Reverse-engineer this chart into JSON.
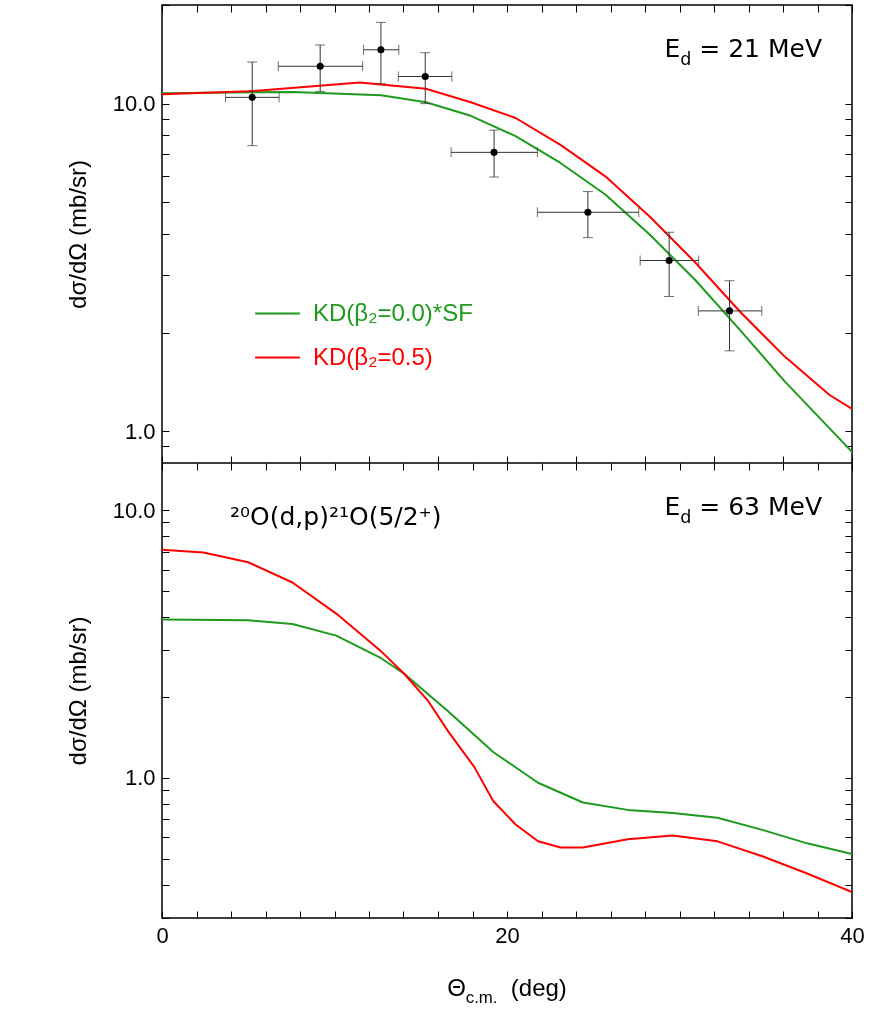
{
  "chart_data": [
    {
      "type": "line",
      "ylabel": "dσ/dΩ  (mb/sr)",
      "log": true,
      "legend": "left",
      "tick_labels": "y",
      "xlim": [
        0,
        40
      ],
      "xticks": [
        0,
        {
          "value": 2,
          "label": null
        },
        {
          "value": 4,
          "label": null
        },
        {
          "value": 6,
          "label": null
        },
        {
          "value": 8,
          "label": null
        },
        {
          "value": 10,
          "label": null
        },
        {
          "value": 12,
          "label": null
        },
        {
          "value": 14,
          "label": null
        },
        {
          "value": 16,
          "label": null
        },
        {
          "value": 18,
          "label": null
        },
        20,
        {
          "value": 22,
          "label": null
        },
        {
          "value": 24,
          "label": null
        },
        {
          "value": 26,
          "label": null
        },
        {
          "value": 28,
          "label": null
        },
        {
          "value": 30,
          "label": null
        },
        {
          "value": 32,
          "label": null
        },
        {
          "value": 34,
          "label": null
        },
        {
          "value": 36,
          "label": null
        },
        {
          "value": 38,
          "label": null
        },
        40
      ],
      "ylim": [
        0.8,
        20
      ],
      "yticks": [
        {
          "value": 0.8,
          "label": null
        },
        {
          "value": 0.9,
          "label": null
        },
        {
          "value": 1,
          "label": "1.0"
        },
        {
          "value": 2,
          "label": null
        },
        {
          "value": 3,
          "label": null
        },
        {
          "value": 4,
          "label": null
        },
        {
          "value": 5,
          "label": null
        },
        {
          "value": 6,
          "label": null
        },
        {
          "value": 7,
          "label": null
        },
        {
          "value": 8,
          "label": null
        },
        {
          "value": 9,
          "label": null
        },
        {
          "value": 10,
          "label": "10.0"
        },
        {
          "value": 20,
          "label": null
        }
      ],
      "annotations": [
        "E$_{d}$ = 21 MeV"
      ],
      "series": [
        {
          "type": "scatter",
          "color": "#000000",
          "x": [
            5.23,
            9.17,
            12.69,
            15.26,
            19.25,
            24.69,
            29.4,
            32.9
          ],
          "values": [
            10.45,
            13.0,
            14.6,
            12.1,
            7.1,
            4.66,
            3.32,
            2.33
          ],
          "errors": [
            [
              7.44,
              13.4
            ],
            [
              10.9,
              15.1
            ],
            [
              11.5,
              17.7
            ],
            [
              10.0,
              14.3
            ],
            [
              5.97,
              8.3
            ],
            [
              3.9,
              5.39
            ],
            [
              2.58,
              4.05
            ],
            [
              1.76,
              2.88
            ]
          ],
          "xerrors": [
            [
              3.68,
              6.79
            ],
            [
              6.74,
              11.63
            ],
            [
              11.68,
              13.73
            ],
            [
              13.7,
              16.8
            ],
            [
              16.76,
              21.76
            ],
            [
              21.76,
              27.64
            ],
            [
              27.72,
              31.11
            ],
            [
              31.09,
              34.77
            ]
          ]
        },
        {
          "name": "KD(β₂=0.0)*SF",
          "color": "#1e9a1e",
          "x": [
            0,
            7.56,
            12.7,
            15.3,
            17.9,
            20.5,
            23.1,
            25.7,
            28.3,
            30.9,
            33.5,
            36.1,
            38.7,
            40
          ],
          "values": [
            10.75,
            10.86,
            10.6,
            10.1,
            9.18,
            7.96,
            6.59,
            5.28,
            3.97,
            2.9,
            2.04,
            1.42,
            1.02,
            0.865
          ]
        },
        {
          "name": "KD(β₂=0.5)",
          "color": "#ff0000",
          "x": [
            0,
            5.0,
            11.45,
            15.3,
            17.9,
            20.5,
            23.1,
            25.7,
            28.3,
            30.9,
            33.5,
            36.1,
            38.7,
            40
          ],
          "values": [
            10.69,
            10.9,
            11.6,
            11.1,
            10.1,
            9.04,
            7.48,
            6.0,
            4.51,
            3.28,
            2.32,
            1.69,
            1.29,
            1.17
          ]
        }
      ]
    },
    {
      "type": "line",
      "xlabel": "Θ$_{c.m.}$  (deg)",
      "ylabel": "dσ/dΩ  (mb/sr)",
      "log": true,
      "xlim": [
        0,
        40
      ],
      "xticks": [
        0,
        {
          "value": 2,
          "label": null
        },
        {
          "value": 4,
          "label": null
        },
        {
          "value": 6,
          "label": null
        },
        {
          "value": 8,
          "label": null
        },
        {
          "value": 10,
          "label": null
        },
        {
          "value": 12,
          "label": null
        },
        {
          "value": 14,
          "label": null
        },
        {
          "value": 16,
          "label": null
        },
        {
          "value": 18,
          "label": null
        },
        20,
        {
          "value": 22,
          "label": null
        },
        {
          "value": 24,
          "label": null
        },
        {
          "value": 26,
          "label": null
        },
        {
          "value": 28,
          "label": null
        },
        {
          "value": 30,
          "label": null
        },
        {
          "value": 32,
          "label": null
        },
        {
          "value": 34,
          "label": null
        },
        {
          "value": 36,
          "label": null
        },
        {
          "value": 38,
          "label": null
        },
        40
      ],
      "ylim": [
        0.3,
        15
      ],
      "yticks": [
        {
          "value": 0.3,
          "label": null
        },
        {
          "value": 0.4,
          "label": null
        },
        {
          "value": 0.5,
          "label": null
        },
        {
          "value": 0.6,
          "label": null
        },
        {
          "value": 0.7,
          "label": null
        },
        {
          "value": 0.8,
          "label": null
        },
        {
          "value": 0.9,
          "label": null
        },
        {
          "value": 1,
          "label": "1.0"
        },
        {
          "value": 2,
          "label": null
        },
        {
          "value": 3,
          "label": null
        },
        {
          "value": 4,
          "label": null
        },
        {
          "value": 5,
          "label": null
        },
        {
          "value": 6,
          "label": null
        },
        {
          "value": 7,
          "label": null
        },
        {
          "value": 8,
          "label": null
        },
        {
          "value": 9,
          "label": null
        },
        {
          "value": 10,
          "label": "10.0"
        }
      ],
      "annotations": [
        "²⁰O(d,p)²¹O(5/2⁺)",
        "E$_{d}$ = 63 MeV"
      ],
      "series": [
        {
          "color": "#1e9a1e",
          "x": [
            0,
            5.0,
            7.56,
            10.1,
            12.7,
            14.04,
            16.6,
            19.2,
            21.8,
            24.4,
            27.0,
            29.6,
            32.2,
            34.8,
            37.4,
            40
          ],
          "values": [
            3.91,
            3.88,
            3.76,
            3.4,
            2.8,
            2.45,
            1.77,
            1.25,
            0.96,
            0.81,
            0.76,
            0.74,
            0.71,
            0.64,
            0.57,
            0.52
          ]
        },
        {
          "color": "#ff0000",
          "x": [
            0,
            2.4,
            5.0,
            7.56,
            10.1,
            12.7,
            14.04,
            15.4,
            16.6,
            18.1,
            19.2,
            20.5,
            21.8,
            23.1,
            24.4,
            27.0,
            29.6,
            32.2,
            34.8,
            37.4,
            40
          ],
          "values": [
            7.11,
            6.95,
            6.39,
            5.37,
            4.11,
            2.97,
            2.45,
            1.95,
            1.49,
            1.1,
            0.82,
            0.67,
            0.58,
            0.55,
            0.55,
            0.59,
            0.61,
            0.58,
            0.51,
            0.44,
            0.375
          ]
        }
      ]
    }
  ]
}
